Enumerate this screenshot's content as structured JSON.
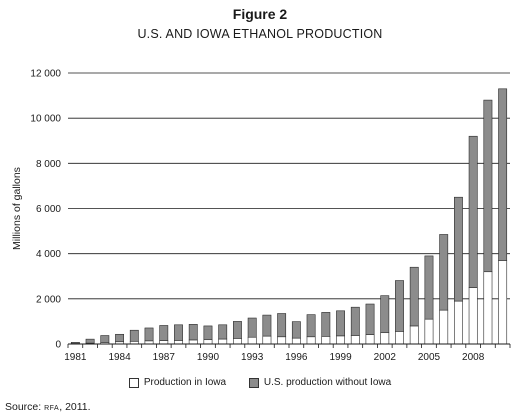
{
  "figure": {
    "label": "Figure 2",
    "title": "U.S. AND IOWA ETHANOL PRODUCTION",
    "source_prefix": "Source: ",
    "source_org": "RFA",
    "source_suffix": ", 2011."
  },
  "chart_data": {
    "type": "bar",
    "stacked": true,
    "ylabel": "Millions of gallons",
    "ylim": [
      0,
      12000
    ],
    "yticks": [
      0,
      2000,
      4000,
      6000,
      8000,
      10000,
      12000
    ],
    "ytick_labels": [
      "0",
      "2 000",
      "4 000",
      "6 000",
      "8 000",
      "10 000",
      "12 000"
    ],
    "grid": "horizontal",
    "legend_position": "bottom",
    "categories": [
      1981,
      1982,
      1983,
      1984,
      1985,
      1986,
      1987,
      1988,
      1989,
      1990,
      1991,
      1992,
      1993,
      1994,
      1995,
      1996,
      1997,
      1998,
      1999,
      2000,
      2001,
      2002,
      2003,
      2004,
      2005,
      2006,
      2007,
      2008,
      2009,
      2010
    ],
    "xtick_labels": [
      "1981",
      "",
      "",
      "1984",
      "",
      "",
      "1987",
      "",
      "",
      "1990",
      "",
      "",
      "1993",
      "",
      "",
      "1996",
      "",
      "",
      "1999",
      "",
      "",
      "2002",
      "",
      "",
      "2005",
      "",
      "",
      "2008",
      "",
      ""
    ],
    "series": [
      {
        "name": "Production in Iowa",
        "color": "#ffffff",
        "values": [
          20,
          40,
          70,
          100,
          120,
          140,
          150,
          160,
          180,
          190,
          220,
          250,
          300,
          350,
          320,
          260,
          320,
          340,
          360,
          380,
          420,
          500,
          560,
          800,
          1100,
          1500,
          1900,
          2500,
          3200,
          3700
        ]
      },
      {
        "name": "U.S. production without Iowa",
        "color": "#8c8c8c",
        "values": [
          55,
          175,
          305,
          330,
          490,
          570,
          670,
          690,
          690,
          610,
          630,
          750,
          850,
          930,
          1030,
          730,
          980,
          1060,
          1110,
          1250,
          1350,
          1640,
          2250,
          2600,
          2800,
          3350,
          4600,
          6700,
          7600,
          7600
        ]
      }
    ]
  }
}
